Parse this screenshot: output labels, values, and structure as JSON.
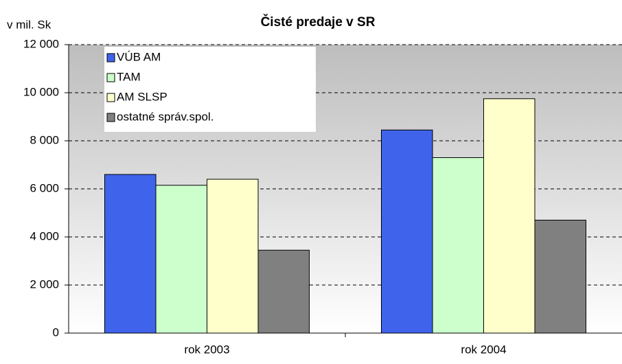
{
  "chart_data": {
    "type": "bar",
    "title": "Čisté predaje v SR",
    "y_label": "v mil. Sk",
    "categories": [
      "rok 2003",
      "rok 2004"
    ],
    "series": [
      {
        "name": "VÚB AM",
        "color": "#3f63ea",
        "values": [
          6600,
          8450
        ]
      },
      {
        "name": "TAM",
        "color": "#ccffcc",
        "values": [
          6150,
          7300
        ]
      },
      {
        "name": "AM SLSP",
        "color": "#ffffcc",
        "values": [
          6400,
          9750
        ]
      },
      {
        "name": "ostatné správ.spol.",
        "color": "#808080",
        "values": [
          3450,
          4700
        ]
      }
    ],
    "ylim": [
      0,
      12000
    ],
    "yticks": [
      0,
      {
        "value": 2000,
        "label": "2 000"
      },
      {
        "value": 4000,
        "label": "4 000"
      },
      {
        "value": 6000,
        "label": "6 000"
      },
      {
        "value": 8000,
        "label": "8 000"
      },
      {
        "value": 10000,
        "label": "10 000"
      },
      {
        "value": 12000,
        "label": "12 000"
      }
    ],
    "grid": true,
    "legend": "top-left"
  }
}
